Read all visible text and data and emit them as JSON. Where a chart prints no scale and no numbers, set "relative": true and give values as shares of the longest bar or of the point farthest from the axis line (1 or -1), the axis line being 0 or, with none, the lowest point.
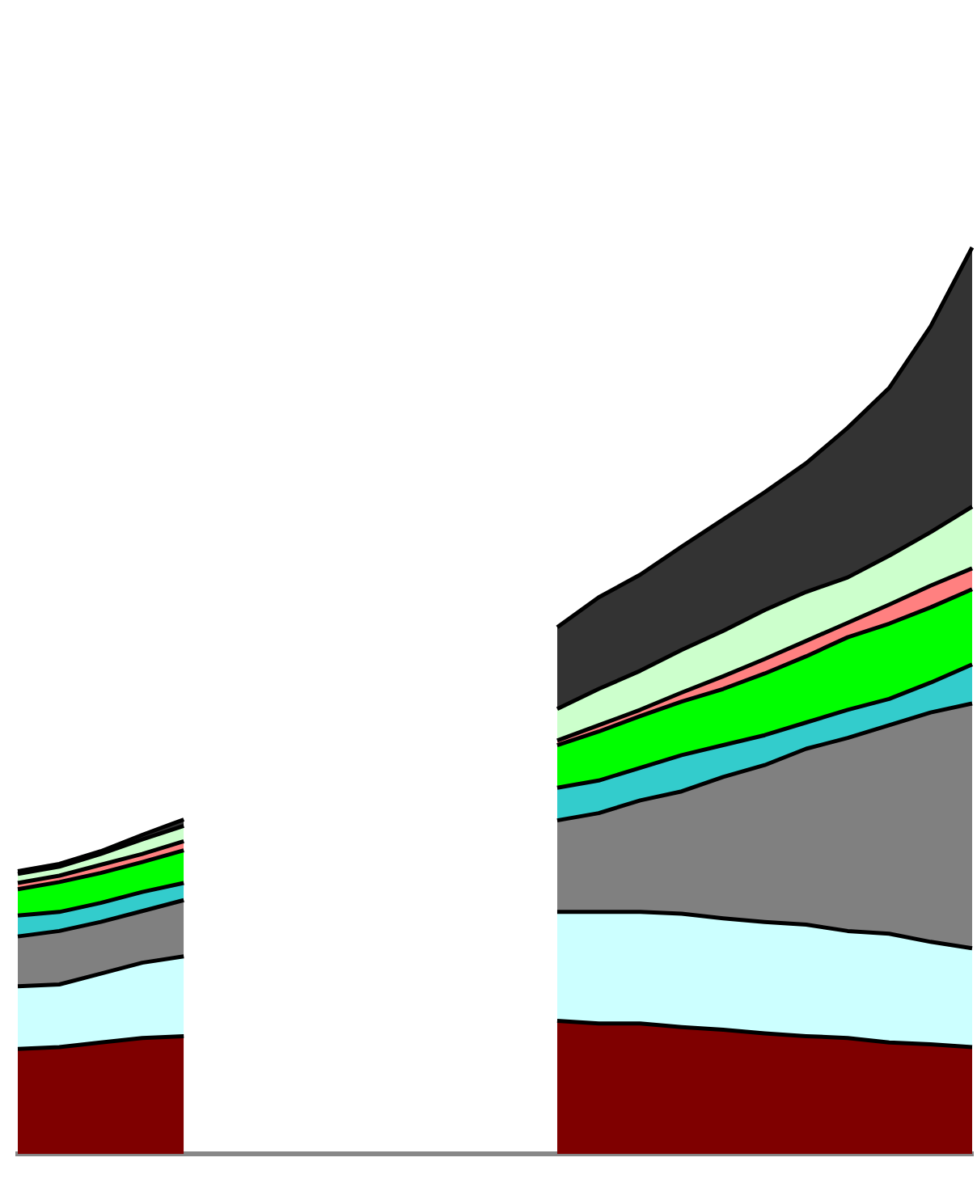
{
  "chart_data": {
    "type": "area",
    "stacked": true,
    "relative": true,
    "legend": false,
    "categories": [
      null,
      null,
      null,
      null,
      null,
      null,
      null,
      null,
      null,
      null,
      null,
      null,
      null,
      null,
      null,
      null,
      null,
      null,
      null,
      null,
      null,
      null,
      null,
      null
    ],
    "series": [
      {
        "color": "#7f0000",
        "values": [
          0.116,
          0.118,
          0.123,
          0.128,
          0.13,
          null,
          null,
          null,
          null,
          null,
          null,
          null,
          null,
          0.147,
          0.144,
          0.144,
          0.14,
          0.137,
          0.133,
          0.13,
          0.128,
          0.123,
          0.121,
          0.118
        ]
      },
      {
        "color": "#ccffff",
        "values": [
          0.069,
          0.069,
          0.076,
          0.083,
          0.088,
          null,
          null,
          null,
          null,
          null,
          null,
          null,
          null,
          0.12,
          0.123,
          0.123,
          0.125,
          0.123,
          0.123,
          0.123,
          0.118,
          0.12,
          0.113,
          0.109
        ]
      },
      {
        "color": "#808080",
        "values": [
          0.055,
          0.059,
          0.057,
          0.057,
          0.062,
          null,
          null,
          null,
          null,
          null,
          null,
          null,
          null,
          0.101,
          0.109,
          0.123,
          0.135,
          0.156,
          0.173,
          0.194,
          0.213,
          0.23,
          0.253,
          0.27
        ]
      },
      {
        "color": "#33cccc",
        "values": [
          0.023,
          0.021,
          0.021,
          0.021,
          0.019,
          null,
          null,
          null,
          null,
          null,
          null,
          null,
          null,
          0.036,
          0.036,
          0.036,
          0.04,
          0.035,
          0.033,
          0.029,
          0.031,
          0.029,
          0.033,
          0.043
        ]
      },
      {
        "color": "#00ff00",
        "values": [
          0.029,
          0.033,
          0.033,
          0.033,
          0.036,
          null,
          null,
          null,
          null,
          null,
          null,
          null,
          null,
          0.047,
          0.054,
          0.057,
          0.059,
          0.062,
          0.068,
          0.073,
          0.08,
          0.083,
          0.083,
          0.083
        ]
      },
      {
        "color": "#ff8080",
        "values": [
          0.007,
          0.007,
          0.009,
          0.009,
          0.01,
          null,
          null,
          null,
          null,
          null,
          null,
          null,
          null,
          0.005,
          0.007,
          0.007,
          0.01,
          0.014,
          0.016,
          0.017,
          0.016,
          0.021,
          0.024,
          0.023
        ]
      },
      {
        "color": "#ccffcc",
        "values": [
          0.01,
          0.01,
          0.012,
          0.016,
          0.017,
          null,
          null,
          null,
          null,
          null,
          null,
          null,
          null,
          0.035,
          0.04,
          0.043,
          0.047,
          0.05,
          0.054,
          0.054,
          0.05,
          0.054,
          0.059,
          0.068
        ]
      },
      {
        "color": "#333333",
        "values": [
          0.003,
          0.003,
          0.003,
          0.005,
          0.007,
          null,
          null,
          null,
          null,
          null,
          null,
          null,
          null,
          0.09,
          0.101,
          0.106,
          0.114,
          0.123,
          0.13,
          0.142,
          0.165,
          0.185,
          0.227,
          0.286
        ]
      }
    ]
  }
}
